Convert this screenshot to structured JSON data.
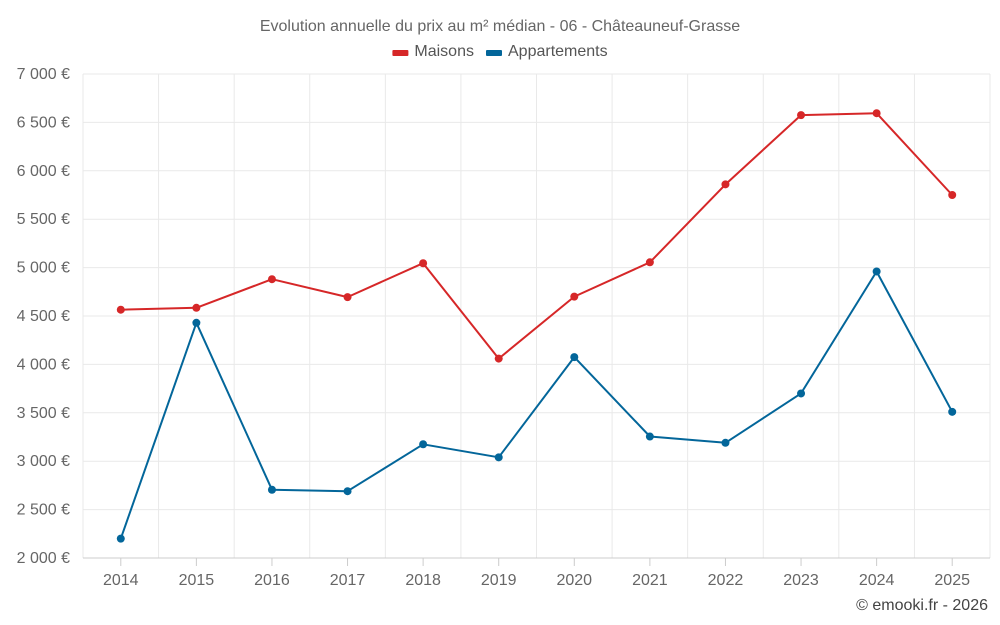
{
  "chart_data": {
    "type": "line",
    "title": "Evolution annuelle du prix au m² médian - 06 - Châteauneuf-Grasse",
    "categories": [
      "2014",
      "2015",
      "2016",
      "2017",
      "2018",
      "2019",
      "2020",
      "2021",
      "2022",
      "2023",
      "2024",
      "2025"
    ],
    "series": [
      {
        "name": "Maisons",
        "color": "#d62728",
        "values": [
          4565,
          4585,
          4880,
          4695,
          5045,
          4060,
          4700,
          5055,
          5860,
          6575,
          6595,
          5750
        ]
      },
      {
        "name": "Appartements",
        "color": "#03669a",
        "values": [
          2200,
          4430,
          2705,
          2690,
          3175,
          3040,
          4075,
          3255,
          3190,
          3700,
          4960,
          3510
        ]
      }
    ],
    "ylim": [
      2000,
      7000
    ],
    "ytick_step": 500,
    "ytick_labels": [
      "2 000 €",
      "2 500 €",
      "3 000 €",
      "3 500 €",
      "4 000 €",
      "4 500 €",
      "5 000 €",
      "5 500 €",
      "6 000 €",
      "6 500 €",
      "7 000 €"
    ],
    "xlabel": "",
    "ylabel": "",
    "grid": true,
    "legend": "top-center"
  },
  "credit": "© emooki.fr - 2026"
}
